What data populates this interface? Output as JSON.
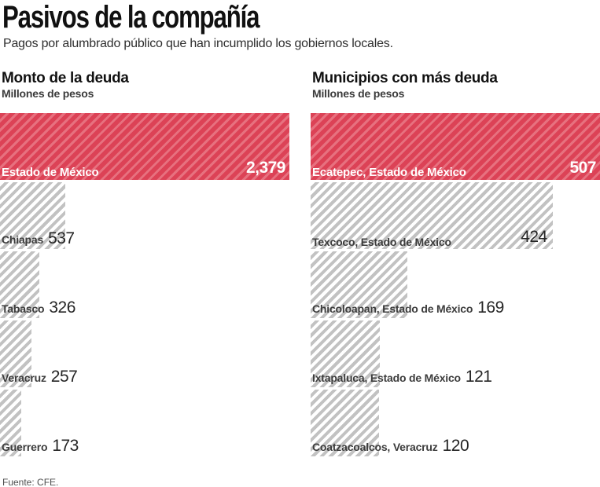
{
  "header": {
    "title": "Pasivos de la compañía",
    "subtitle": "Pagos por alumbrado público que han incumplido los gobiernos locales."
  },
  "footer": {
    "source": "Fuente: CFE."
  },
  "colors": {
    "highlight_red": "#dc4256",
    "highlight_red_stripe": "#e7717f",
    "hatch_gray_stripe": "#c2c2c2",
    "background": "#ffffff"
  },
  "chart_data": [
    {
      "type": "bar",
      "orientation": "horizontal",
      "title": "Monto de la deuda",
      "units_label": "Millones de pesos",
      "categories": [
        "Estado de México",
        "Chiapas",
        "Tabasco",
        "Veracruz",
        "Guerrero"
      ],
      "values": [
        2379,
        537,
        326,
        257,
        173
      ],
      "value_labels": [
        "2,379",
        "537",
        "326",
        "257",
        "173"
      ],
      "xlim": [
        0,
        2379
      ],
      "highlight_index": 0,
      "grid": false,
      "legend": false,
      "bar_style": "diagonal-hatch"
    },
    {
      "type": "bar",
      "orientation": "horizontal",
      "title": "Municipios con más deuda",
      "units_label": "Millones de pesos",
      "categories": [
        "Ecatepec, Estado de México",
        "Texcoco, Estado de México",
        "Chicoloapan, Estado de México",
        "Ixtapaluca, Estado de México",
        "Coatzacoalcos, Veracruz"
      ],
      "values": [
        507,
        424,
        169,
        121,
        120
      ],
      "value_labels": [
        "507",
        "424",
        "169",
        "121",
        "120"
      ],
      "xlim": [
        0,
        507
      ],
      "highlight_index": 0,
      "grid": false,
      "legend": false,
      "bar_style": "diagonal-hatch"
    }
  ]
}
